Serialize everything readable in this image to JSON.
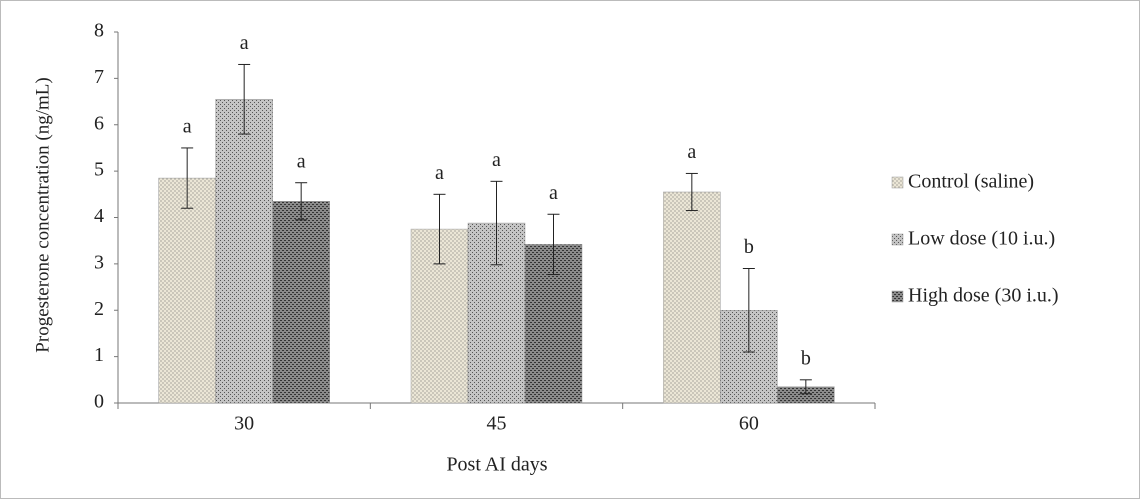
{
  "chart_data": {
    "type": "bar",
    "y_label": "Progesterone concentration (ng/mL)",
    "x_label": "Post AI days",
    "categories": [
      "30",
      "45",
      "60"
    ],
    "series": [
      {
        "name": "Control (saline)",
        "color": "#ebe6d6",
        "values": [
          4.85,
          3.75,
          4.55
        ],
        "errors": [
          0.65,
          0.75,
          0.4
        ],
        "letters": [
          "a",
          "a",
          "a"
        ]
      },
      {
        "name": "Low dose (10 i.u.)",
        "color": "#c4c4c4",
        "values": [
          6.55,
          3.88,
          2.0
        ],
        "errors": [
          0.75,
          0.9,
          0.9
        ],
        "letters": [
          "a",
          "a",
          "b"
        ]
      },
      {
        "name": "High dose (30 i.u.)",
        "color": "#8a8a8a",
        "values": [
          4.35,
          3.42,
          0.35
        ],
        "errors": [
          0.4,
          0.65,
          0.15
        ],
        "letters": [
          "a",
          "a",
          "b"
        ]
      }
    ],
    "ylim": [
      0,
      8
    ],
    "yticks": [
      0,
      1,
      2,
      3,
      4,
      5,
      6,
      7,
      8
    ],
    "grid": false,
    "legend": "right"
  }
}
